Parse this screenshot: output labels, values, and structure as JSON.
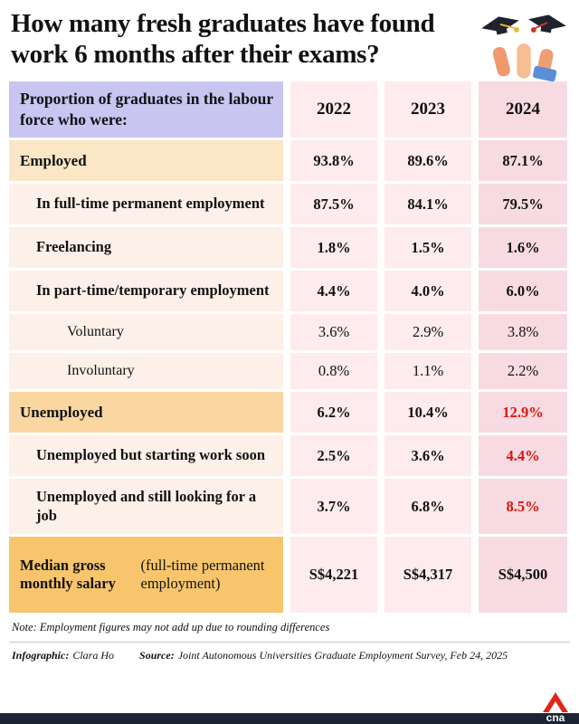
{
  "title": "How many fresh graduates have found work 6 months after their exams?",
  "chart_data": {
    "type": "table",
    "header_label": "Proportion of graduates in the labour force who were:",
    "columns": [
      "2022",
      "2023",
      "2024"
    ],
    "rows": [
      {
        "label": "Employed",
        "indent": 0,
        "bold": true,
        "band": "employed",
        "values": [
          "93.8%",
          "89.6%",
          "87.1%"
        ],
        "red_indices": []
      },
      {
        "label": "In full-time permanent employment",
        "indent": 1,
        "bold": true,
        "band": "sub",
        "values": [
          "87.5%",
          "84.1%",
          "79.5%"
        ],
        "red_indices": []
      },
      {
        "label": "Freelancing",
        "indent": 1,
        "bold": true,
        "band": "sub",
        "values": [
          "1.8%",
          "1.5%",
          "1.6%"
        ],
        "red_indices": []
      },
      {
        "label": "In part-time/temporary employment",
        "indent": 1,
        "bold": true,
        "band": "sub",
        "values": [
          "4.4%",
          "4.0%",
          "6.0%"
        ],
        "red_indices": []
      },
      {
        "label": "Voluntary",
        "indent": 2,
        "bold": false,
        "band": "sub",
        "values": [
          "3.6%",
          "2.9%",
          "3.8%"
        ],
        "red_indices": []
      },
      {
        "label": "Involuntary",
        "indent": 2,
        "bold": false,
        "band": "sub",
        "values": [
          "0.8%",
          "1.1%",
          "2.2%"
        ],
        "red_indices": []
      },
      {
        "label": "Unemployed",
        "indent": 0,
        "bold": true,
        "band": "unemployed",
        "values": [
          "6.2%",
          "10.4%",
          "12.9%"
        ],
        "red_indices": [
          2
        ]
      },
      {
        "label": "Unemployed but starting work soon",
        "indent": 1,
        "bold": true,
        "band": "sub",
        "values": [
          "2.5%",
          "3.6%",
          "4.4%"
        ],
        "red_indices": [
          2
        ]
      },
      {
        "label": "Unemployed and still looking for a job",
        "indent": 1,
        "bold": true,
        "band": "sub",
        "values": [
          "3.7%",
          "6.8%",
          "8.5%"
        ],
        "red_indices": [
          2
        ]
      },
      {
        "label": "Median gross monthly salary",
        "sublabel": "(full-time permanent employment)",
        "indent": 0,
        "bold": true,
        "band": "salary",
        "values": [
          "S$4,221",
          "S$4,317",
          "S$4,500"
        ],
        "red_indices": []
      }
    ]
  },
  "note": "Note: Employment figures may not add up due to rounding differences",
  "footer": {
    "infographic_label": "Infographic:",
    "infographic_value": "Clara Ho",
    "source_label": "Source:",
    "source_value": "Joint Autonomous Universities Graduate Employment Survey, Feb 24, 2025"
  },
  "logo_text": "cna",
  "colors": {
    "header_band": "#c8c5f1",
    "employed_band": "#fbe6c6",
    "sub_band": "#fdf0e8",
    "unemployed_band": "#fad7a0",
    "salary_band": "#f8c56d",
    "cell_pink": "#fdebee",
    "cell_pink_dark": "#f8dbe2",
    "highlight_red": "#d8150d",
    "footer_bar": "#1d2433",
    "logo_red": "#e1251b",
    "text_dark": "#111111"
  }
}
